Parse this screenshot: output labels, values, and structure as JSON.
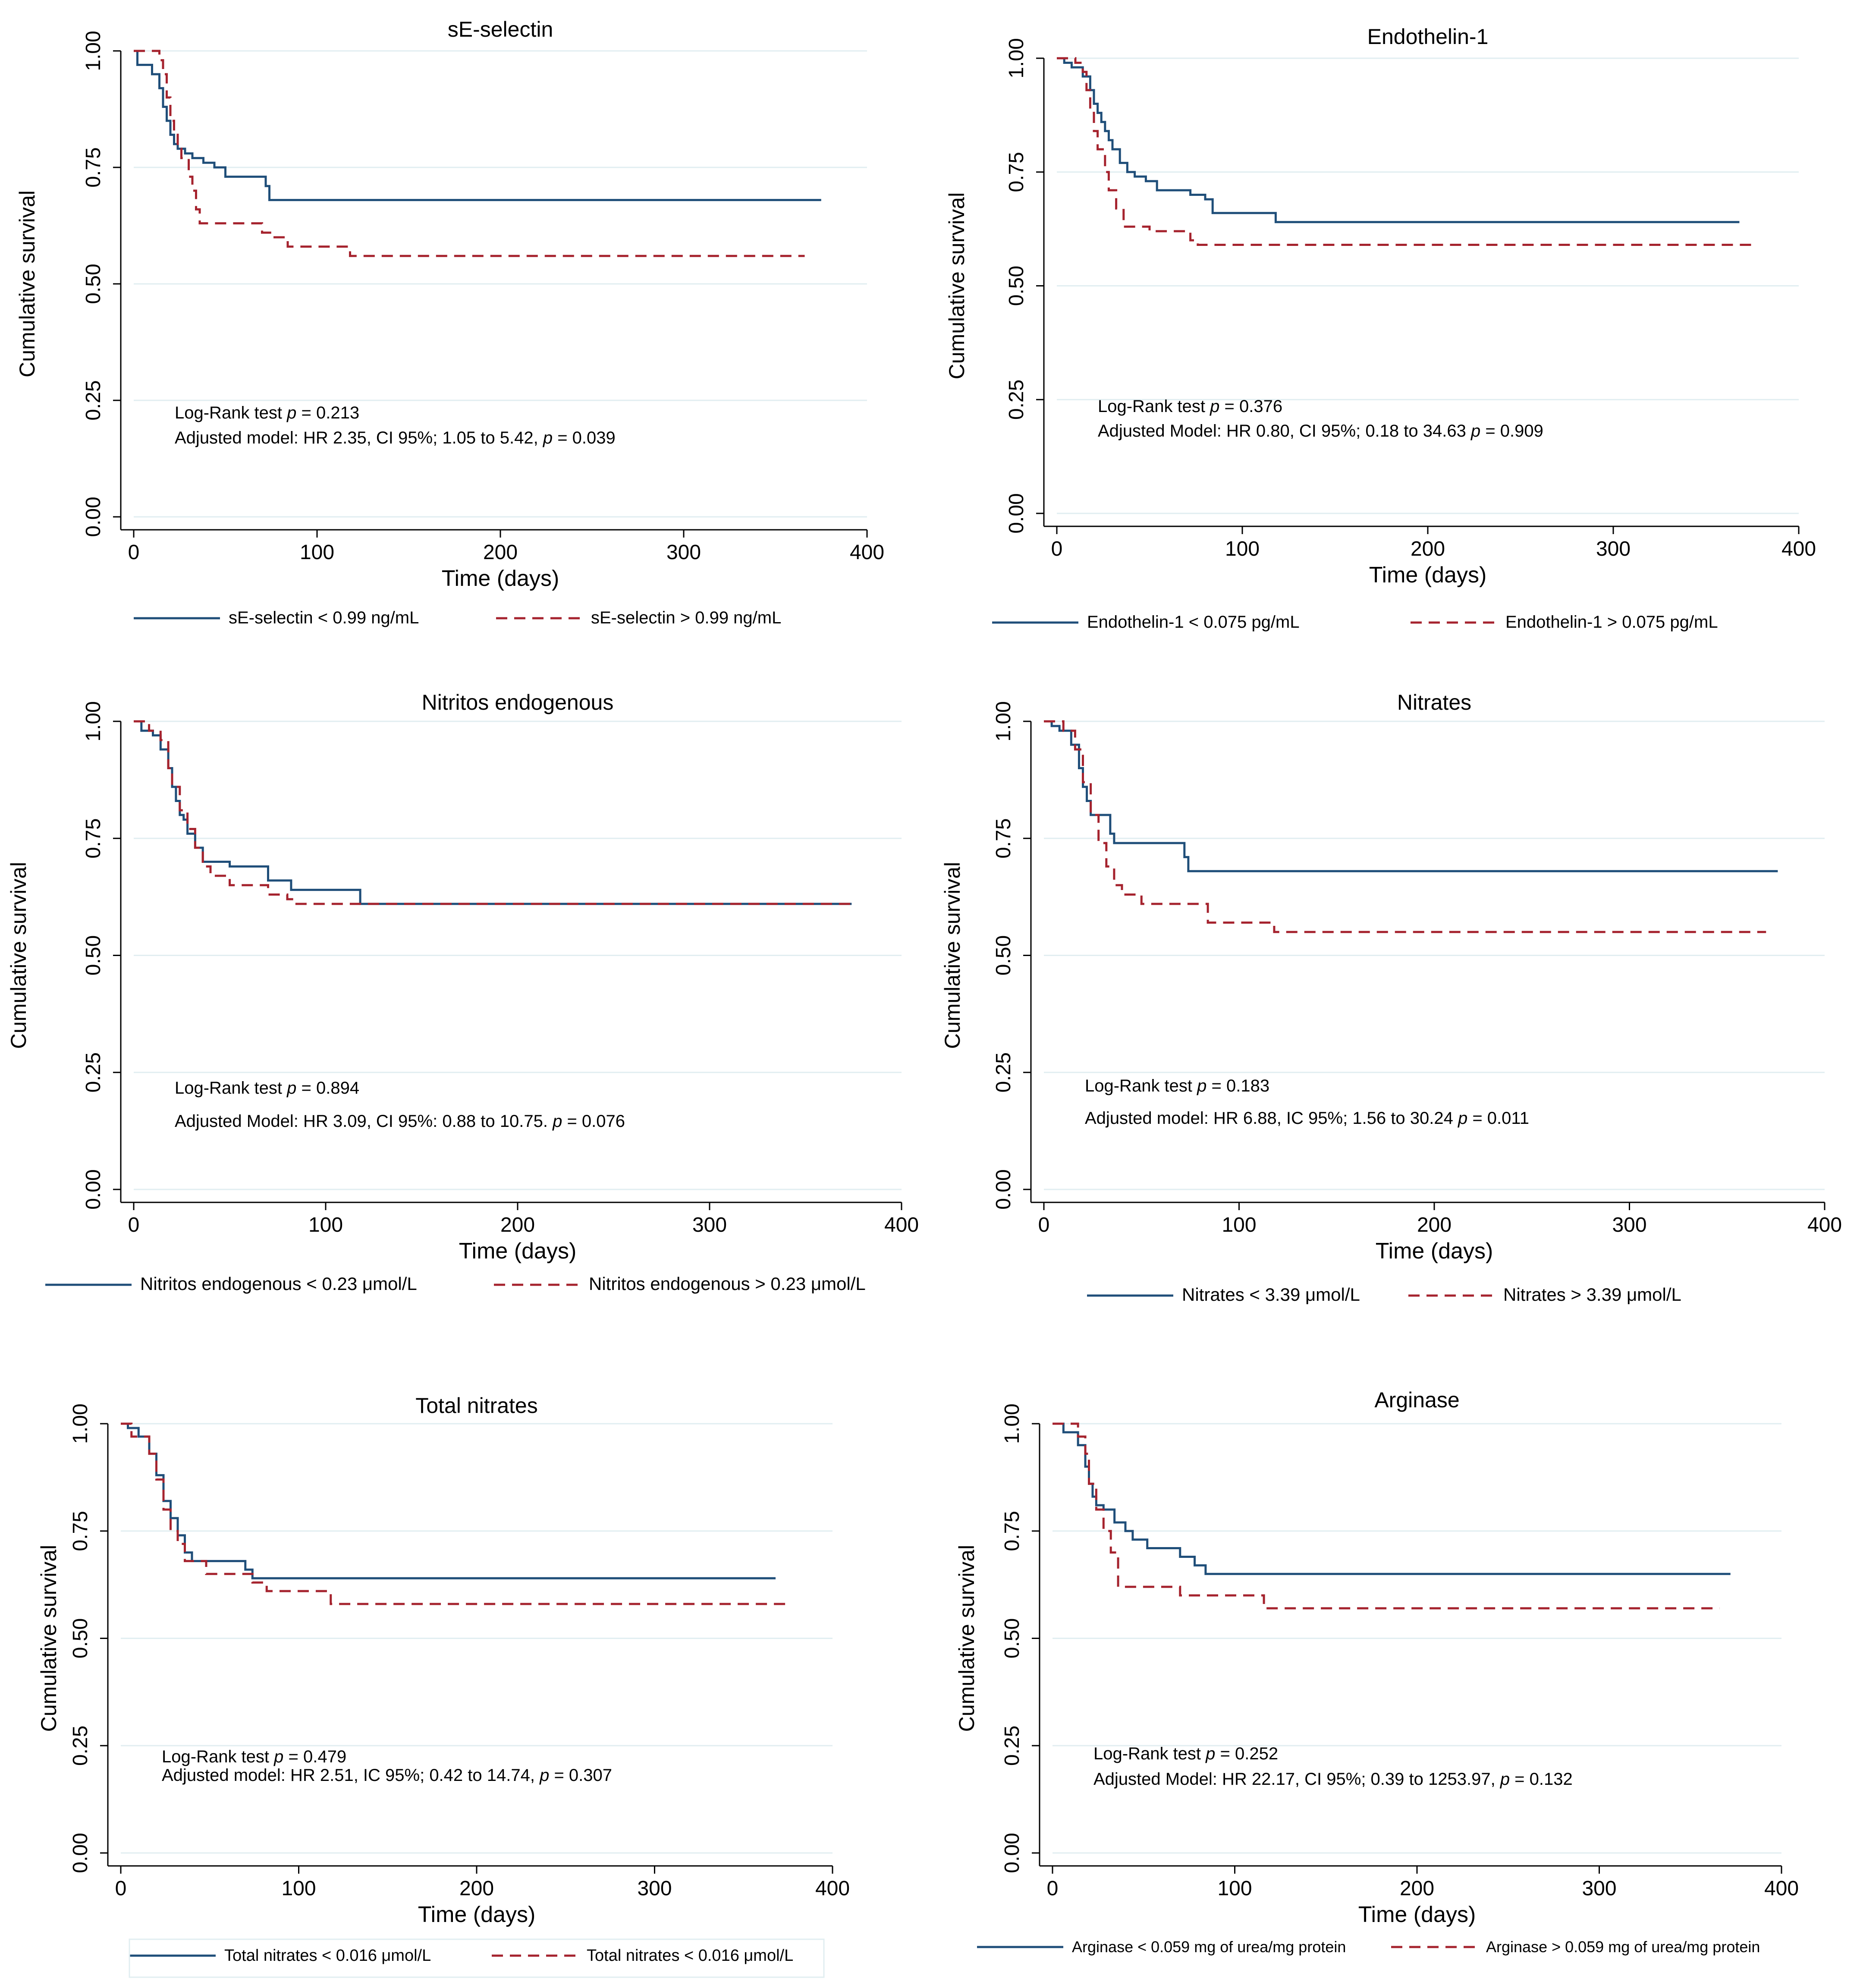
{
  "colors": {
    "group_low": "#1f4e79",
    "group_high": "#a5232e",
    "grid": "#e1eef1"
  },
  "chart_data": [
    {
      "type": "line",
      "title": "sE-selectin",
      "xlabel": "Time (days)",
      "ylabel": "Cumulative survival",
      "xlim": [
        0,
        400
      ],
      "ylim": [
        0,
        1
      ],
      "xticks": [
        0,
        100,
        200,
        300,
        400
      ],
      "yticks": [
        0,
        0.25,
        0.5,
        0.75,
        1.0
      ],
      "xtick_labels": [
        "0",
        "100",
        "200",
        "300",
        "400"
      ],
      "ytick_labels": [
        "0.00",
        "0.25",
        "0.50",
        "0.75",
        "1.00"
      ],
      "grid": true,
      "annotations": [
        "Log-Rank test p = 0.213",
        "Adjusted model: HR 2.35, CI 95%; 1.05 to 5.42, p = 0.039"
      ],
      "legend_position": "bottom",
      "series": [
        {
          "name": "sE-selectin < 0.99 ng/mL",
          "style": "solid",
          "x": [
            0,
            2,
            4,
            10,
            14,
            16,
            18,
            20,
            22,
            24,
            26,
            28,
            32,
            38,
            44,
            50,
            72,
            74,
            375
          ],
          "y": [
            1.0,
            0.97,
            0.97,
            0.95,
            0.92,
            0.88,
            0.85,
            0.82,
            0.8,
            0.79,
            0.79,
            0.78,
            0.77,
            0.76,
            0.75,
            0.73,
            0.71,
            0.68,
            0.68
          ]
        },
        {
          "name": "sE-selectin > 0.99 ng/mL",
          "style": "dashed",
          "x": [
            0,
            10,
            14,
            16,
            18,
            20,
            22,
            24,
            26,
            30,
            32,
            34,
            36,
            70,
            76,
            84,
            118,
            366
          ],
          "y": [
            1.0,
            1.0,
            0.98,
            0.95,
            0.9,
            0.85,
            0.82,
            0.79,
            0.77,
            0.73,
            0.7,
            0.66,
            0.63,
            0.61,
            0.6,
            0.58,
            0.56,
            0.56
          ]
        }
      ]
    },
    {
      "type": "line",
      "title": "Endothelin-1",
      "xlabel": "Time (days)",
      "ylabel": "Cumulative survival",
      "xlim": [
        0,
        400
      ],
      "ylim": [
        0,
        1
      ],
      "xticks": [
        0,
        100,
        200,
        300,
        400
      ],
      "yticks": [
        0,
        0.25,
        0.5,
        0.75,
        1.0
      ],
      "xtick_labels": [
        "0",
        "100",
        "200",
        "300",
        "400"
      ],
      "ytick_labels": [
        "0.00",
        "0.25",
        "0.50",
        "0.75",
        "1.00"
      ],
      "grid": true,
      "annotations": [
        "Log-Rank test p = 0.376",
        "Adjusted Model: HR 0.80, CI 95%; 0.18 to 34.63 p = 0.909"
      ],
      "legend_position": "bottom",
      "series": [
        {
          "name": "Endothelin-1 < 0.075 pg/mL",
          "style": "solid",
          "x": [
            0,
            4,
            8,
            14,
            18,
            20,
            22,
            24,
            26,
            28,
            30,
            34,
            38,
            42,
            48,
            54,
            72,
            80,
            84,
            118,
            368
          ],
          "y": [
            1.0,
            0.99,
            0.98,
            0.96,
            0.93,
            0.9,
            0.88,
            0.86,
            0.84,
            0.82,
            0.8,
            0.77,
            0.75,
            0.74,
            0.73,
            0.71,
            0.7,
            0.69,
            0.66,
            0.64,
            0.64
          ]
        },
        {
          "name": "Endothelin-1 > 0.075 pg/mL",
          "style": "dashed",
          "x": [
            0,
            10,
            14,
            16,
            18,
            20,
            22,
            26,
            28,
            32,
            36,
            50,
            72,
            76,
            375
          ],
          "y": [
            1.0,
            0.99,
            0.97,
            0.93,
            0.88,
            0.84,
            0.8,
            0.75,
            0.71,
            0.67,
            0.63,
            0.62,
            0.6,
            0.59,
            0.59
          ]
        }
      ]
    },
    {
      "type": "line",
      "title": "Nitritos endogenous",
      "xlabel": "Time (days)",
      "ylabel": "Cumulative survival",
      "xlim": [
        0,
        400
      ],
      "ylim": [
        0,
        1
      ],
      "xticks": [
        0,
        100,
        200,
        300,
        400
      ],
      "yticks": [
        0,
        0.25,
        0.5,
        0.75,
        1.0
      ],
      "xtick_labels": [
        "0",
        "100",
        "200",
        "300",
        "400"
      ],
      "ytick_labels": [
        "0.00",
        "0.25",
        "0.50",
        "0.75",
        "1.00"
      ],
      "grid": true,
      "annotations": [
        "Log-Rank test p = 0.894",
        "Adjusted Model: HR 3.09, CI 95%: 0.88 to 10.75. p = 0.076"
      ],
      "legend_position": "bottom",
      "series": [
        {
          "name": "Nitritos endogenous < 0.23 μmol/L",
          "style": "solid",
          "x": [
            0,
            4,
            10,
            14,
            18,
            20,
            22,
            24,
            26,
            28,
            32,
            36,
            40,
            50,
            70,
            82,
            118,
            374
          ],
          "y": [
            1.0,
            0.98,
            0.97,
            0.94,
            0.9,
            0.86,
            0.83,
            0.8,
            0.79,
            0.76,
            0.73,
            0.7,
            0.7,
            0.69,
            0.66,
            0.64,
            0.61,
            0.61
          ]
        },
        {
          "name": "Nitritos endogenous > 0.23 μmol/L",
          "style": "dashed",
          "x": [
            0,
            8,
            14,
            18,
            20,
            24,
            28,
            32,
            36,
            40,
            50,
            70,
            80,
            84,
            374
          ],
          "y": [
            1.0,
            0.98,
            0.96,
            0.9,
            0.86,
            0.81,
            0.77,
            0.73,
            0.69,
            0.67,
            0.65,
            0.63,
            0.62,
            0.61,
            0.61
          ]
        }
      ]
    },
    {
      "type": "line",
      "title": "Nitrates",
      "xlabel": "Time (days)",
      "ylabel": "Cumulative survival",
      "xlim": [
        0,
        400
      ],
      "ylim": [
        0,
        1
      ],
      "xticks": [
        0,
        100,
        200,
        300,
        400
      ],
      "yticks": [
        0,
        0.25,
        0.5,
        0.75,
        1.0
      ],
      "xtick_labels": [
        "0",
        "100",
        "200",
        "300",
        "400"
      ],
      "ytick_labels": [
        "0.00",
        "0.25",
        "0.50",
        "0.75",
        "1.00"
      ],
      "grid": true,
      "annotations": [
        "Log-Rank test p = 0.183",
        "Adjusted model: HR 6.88, IC 95%; 1.56 to 30.24 p = 0.011"
      ],
      "legend_position": "bottom",
      "series": [
        {
          "name": "Nitrates < 3.39 μmol/L",
          "style": "solid",
          "x": [
            0,
            4,
            8,
            14,
            18,
            20,
            22,
            24,
            26,
            34,
            36,
            72,
            74,
            376
          ],
          "y": [
            1.0,
            0.99,
            0.98,
            0.95,
            0.9,
            0.86,
            0.83,
            0.8,
            0.8,
            0.76,
            0.74,
            0.71,
            0.68,
            0.68
          ]
        },
        {
          "name": "Nitrates > 3.39 μmol/L",
          "style": "dashed",
          "x": [
            0,
            10,
            16,
            20,
            24,
            28,
            32,
            36,
            40,
            50,
            84,
            118,
            370
          ],
          "y": [
            1.0,
            0.98,
            0.94,
            0.87,
            0.8,
            0.74,
            0.69,
            0.65,
            0.63,
            0.61,
            0.57,
            0.55,
            0.55
          ]
        }
      ]
    },
    {
      "type": "line",
      "title": "Total nitrates",
      "xlabel": "Time (days)",
      "ylabel": "Cumulative survival",
      "xlim": [
        0,
        400
      ],
      "ylim": [
        0,
        1
      ],
      "xticks": [
        0,
        100,
        200,
        300,
        400
      ],
      "yticks": [
        0,
        0.25,
        0.5,
        0.75,
        1.0
      ],
      "xtick_labels": [
        "0",
        "100",
        "200",
        "300",
        "400"
      ],
      "ytick_labels": [
        "0.00",
        "0.25",
        "0.50",
        "0.75",
        "1.00"
      ],
      "grid": true,
      "annotations": [
        "Log-Rank test p = 0.479",
        "Adjusted model: HR 2.51, IC 95%; 0.42 to 14.74, p = 0.307"
      ],
      "legend_position": "bottom",
      "series": [
        {
          "name": "Total nitrates < 0.016 μmol/L",
          "style": "solid",
          "x": [
            0,
            4,
            10,
            16,
            20,
            24,
            28,
            32,
            36,
            40,
            70,
            74,
            368
          ],
          "y": [
            1.0,
            0.99,
            0.97,
            0.93,
            0.88,
            0.82,
            0.78,
            0.74,
            0.7,
            0.68,
            0.66,
            0.64,
            0.64
          ]
        },
        {
          "name": "Total nitrates < 0.016 μmol/L",
          "style": "dashed",
          "x": [
            0,
            6,
            16,
            20,
            24,
            28,
            32,
            36,
            48,
            74,
            82,
            118,
            376
          ],
          "y": [
            1.0,
            0.97,
            0.93,
            0.87,
            0.8,
            0.75,
            0.72,
            0.68,
            0.65,
            0.63,
            0.61,
            0.58,
            0.58
          ]
        }
      ]
    },
    {
      "type": "line",
      "title": "Arginase",
      "xlabel": "Time (days)",
      "ylabel": "Cumulative survival",
      "xlim": [
        0,
        400
      ],
      "ylim": [
        0,
        1
      ],
      "xticks": [
        0,
        100,
        200,
        300,
        400
      ],
      "yticks": [
        0,
        0.25,
        0.5,
        0.75,
        1.0
      ],
      "xtick_labels": [
        "0",
        "100",
        "200",
        "300",
        "400"
      ],
      "ytick_labels": [
        "0.00",
        "0.25",
        "0.50",
        "0.75",
        "1.00"
      ],
      "grid": true,
      "annotations": [
        "Log-Rank test p = 0.252",
        "Adjusted Model: HR 22.17, CI 95%; 0.39 to 1253.97, p = 0.132"
      ],
      "legend_position": "bottom",
      "series": [
        {
          "name": "Arginase < 0.059 mg of urea/mg protein",
          "style": "solid",
          "x": [
            0,
            6,
            14,
            18,
            20,
            22,
            24,
            28,
            34,
            40,
            44,
            52,
            70,
            78,
            84,
            372
          ],
          "y": [
            1.0,
            0.98,
            0.95,
            0.9,
            0.86,
            0.83,
            0.81,
            0.8,
            0.77,
            0.75,
            0.73,
            0.71,
            0.69,
            0.67,
            0.65,
            0.65
          ]
        },
        {
          "name": "Arginase > 0.059 mg of urea/mg protein",
          "style": "dashed",
          "x": [
            0,
            14,
            18,
            20,
            24,
            28,
            32,
            36,
            70,
            116,
            366
          ],
          "y": [
            1.0,
            0.97,
            0.93,
            0.86,
            0.8,
            0.75,
            0.7,
            0.62,
            0.6,
            0.57,
            0.57
          ]
        }
      ]
    }
  ]
}
